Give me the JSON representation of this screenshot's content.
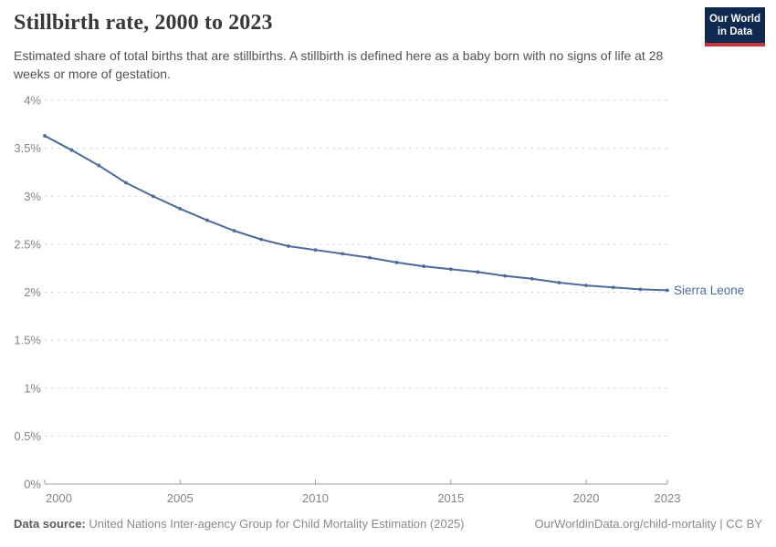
{
  "header": {
    "title": "Stillbirth rate, 2000 to 2023",
    "subtitle": "Estimated share of total births that are stillbirths. A stillbirth is defined here as a baby born with no signs of life at 28 weeks or more of gestation.",
    "logo_line1": "Our World",
    "logo_line2": "in Data"
  },
  "chart_data": {
    "type": "line",
    "title": "Stillbirth rate, 2000 to 2023",
    "x": [
      2000,
      2001,
      2002,
      2003,
      2004,
      2005,
      2006,
      2007,
      2008,
      2009,
      2010,
      2011,
      2012,
      2013,
      2014,
      2015,
      2016,
      2017,
      2018,
      2019,
      2020,
      2021,
      2022,
      2023
    ],
    "series": [
      {
        "name": "Sierra Leone",
        "values": [
          3.63,
          3.48,
          3.32,
          3.14,
          3.0,
          2.87,
          2.75,
          2.64,
          2.55,
          2.48,
          2.44,
          2.4,
          2.36,
          2.31,
          2.27,
          2.24,
          2.21,
          2.17,
          2.14,
          2.1,
          2.07,
          2.05,
          2.03,
          2.02
        ]
      }
    ],
    "unit": "%",
    "xlabel": "",
    "ylabel": "",
    "xlim": [
      2000,
      2023
    ],
    "ylim": [
      0,
      4
    ],
    "grid": true,
    "legend_position": "right-of-line-end",
    "entity_label": "Sierra Leone",
    "y_ticks": [
      {
        "value": 0,
        "label": "0%"
      },
      {
        "value": 0.5,
        "label": "0.5%"
      },
      {
        "value": 1,
        "label": "1%"
      },
      {
        "value": 1.5,
        "label": "1.5%"
      },
      {
        "value": 2,
        "label": "2%"
      },
      {
        "value": 2.5,
        "label": "2.5%"
      },
      {
        "value": 3,
        "label": "3%"
      },
      {
        "value": 3.5,
        "label": "3.5%"
      },
      {
        "value": 4,
        "label": "4%"
      }
    ],
    "x_ticks": [
      {
        "value": 2000,
        "label": "2000"
      },
      {
        "value": 2005,
        "label": "2005"
      },
      {
        "value": 2010,
        "label": "2010"
      },
      {
        "value": 2015,
        "label": "2015"
      },
      {
        "value": 2020,
        "label": "2020"
      },
      {
        "value": 2023,
        "label": "2023"
      }
    ]
  },
  "colors": {
    "line": "#4c6a9c",
    "entity_label": "#4c6a9c",
    "gridline": "#d9d9d9",
    "axis": "#9e9e9e",
    "axis_label": "#848484",
    "logo_bg": "#0f2a4e",
    "logo_accent": "#c4353d"
  },
  "footer": {
    "source_label": "Data source:",
    "source_text": "United Nations Inter-agency Group for Child Mortality Estimation (2025)",
    "link_text": "OurWorldinData.org/child-mortality | CC BY"
  }
}
